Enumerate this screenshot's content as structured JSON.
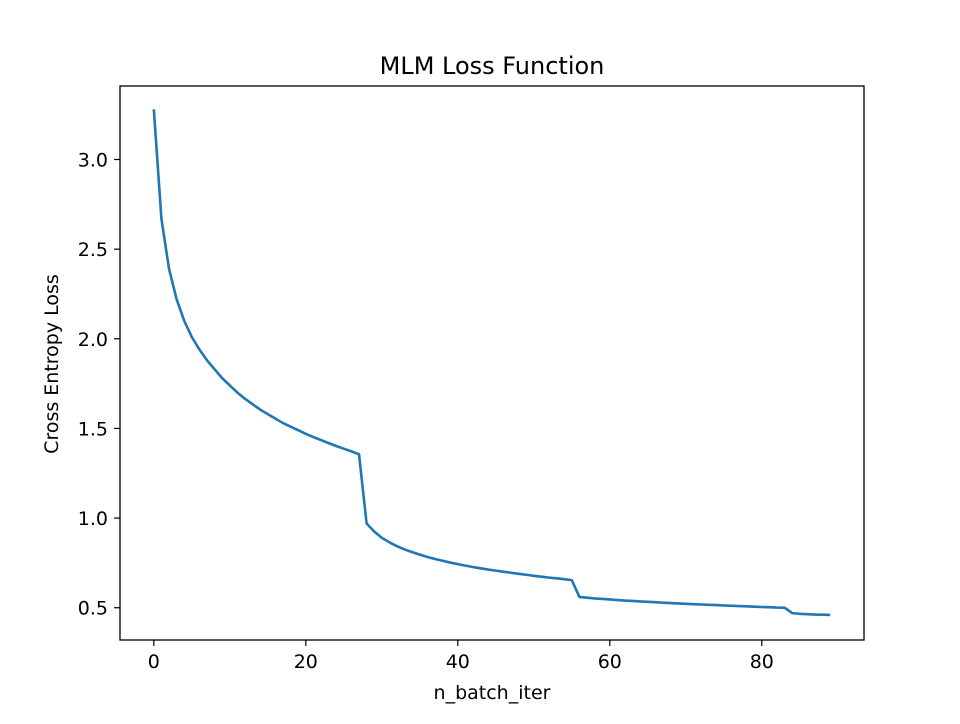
{
  "chart_data": {
    "type": "line",
    "title": "MLM Loss Function",
    "xlabel": "n_batch_iter",
    "ylabel": "Cross Entropy Loss",
    "xlim": [
      -4.45,
      93.45
    ],
    "ylim": [
      0.32,
      3.41
    ],
    "xticks": [
      0,
      20,
      40,
      60,
      80
    ],
    "xtick_labels": [
      "0",
      "20",
      "40",
      "60",
      "80"
    ],
    "yticks": [
      0.5,
      1.0,
      1.5,
      2.0,
      2.5,
      3.0
    ],
    "ytick_labels": [
      "0.5",
      "1.0",
      "1.5",
      "2.0",
      "2.5",
      "3.0"
    ],
    "grid": false,
    "legend": "none",
    "series": [
      {
        "color": "#1f77b4",
        "x": [
          0,
          1,
          2,
          3,
          4,
          5,
          6,
          7,
          8,
          9,
          10,
          11,
          12,
          13,
          14,
          15,
          16,
          17,
          18,
          19,
          20,
          21,
          22,
          23,
          24,
          25,
          26,
          27,
          28,
          29,
          30,
          31,
          32,
          33,
          34,
          35,
          36,
          37,
          38,
          39,
          40,
          41,
          42,
          43,
          44,
          45,
          46,
          47,
          48,
          49,
          50,
          51,
          52,
          53,
          54,
          55,
          56,
          57,
          58,
          59,
          60,
          61,
          62,
          63,
          64,
          65,
          66,
          67,
          68,
          69,
          70,
          71,
          72,
          73,
          74,
          75,
          76,
          77,
          78,
          79,
          80,
          81,
          82,
          83,
          84,
          85,
          86,
          87,
          88,
          89
        ],
        "y": [
          3.28,
          2.67,
          2.39,
          2.22,
          2.1,
          2.01,
          1.94,
          1.88,
          1.83,
          1.78,
          1.74,
          1.7,
          1.665,
          1.635,
          1.605,
          1.58,
          1.555,
          1.53,
          1.51,
          1.49,
          1.47,
          1.452,
          1.435,
          1.418,
          1.402,
          1.387,
          1.372,
          1.356,
          0.97,
          0.925,
          0.89,
          0.865,
          0.843,
          0.825,
          0.81,
          0.796,
          0.783,
          0.772,
          0.762,
          0.752,
          0.743,
          0.735,
          0.727,
          0.72,
          0.713,
          0.707,
          0.701,
          0.695,
          0.689,
          0.684,
          0.678,
          0.673,
          0.668,
          0.664,
          0.659,
          0.654,
          0.56,
          0.556,
          0.552,
          0.549,
          0.546,
          0.543,
          0.54,
          0.538,
          0.535,
          0.533,
          0.531,
          0.528,
          0.526,
          0.524,
          0.522,
          0.52,
          0.518,
          0.516,
          0.515,
          0.513,
          0.511,
          0.509,
          0.508,
          0.506,
          0.504,
          0.503,
          0.501,
          0.5,
          0.47,
          0.466,
          0.464,
          0.462,
          0.461,
          0.46
        ]
      }
    ]
  }
}
